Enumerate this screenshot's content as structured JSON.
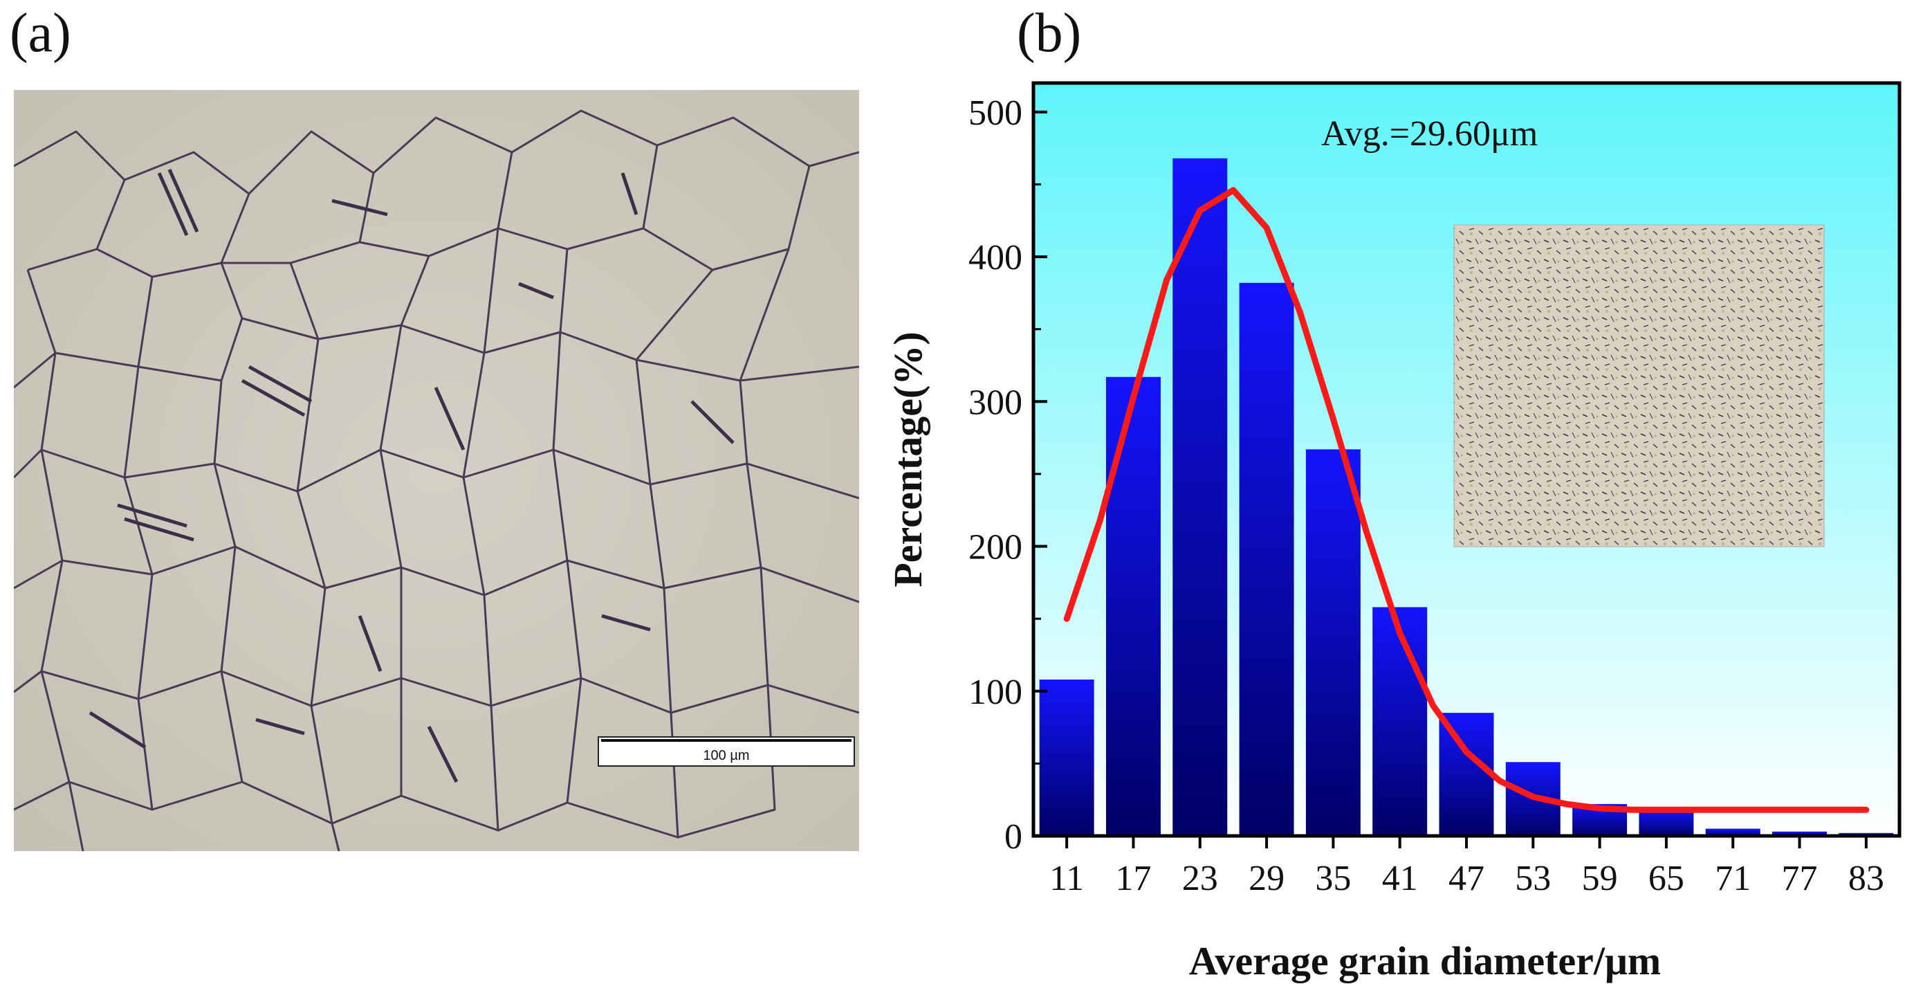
{
  "panels": {
    "a": {
      "label": "(a)",
      "scale_bar_text": "100 µm"
    },
    "b": {
      "label": "(b)"
    }
  },
  "colors": {
    "bar_top": "#1414ff",
    "bar_bottom": "#000066",
    "fit_line": "#ff1a1a",
    "bg_top": "#5ef5fb",
    "bg_bottom": "#ffffff",
    "micro_bg": "#ccc8bc",
    "grain_boundary": "#4a3a55"
  },
  "chart_data": {
    "type": "bar",
    "title": "",
    "annotation": "Avg.=29.60μm",
    "xlabel": "Average grain diameter/μm",
    "ylabel": "Percentage(%)",
    "categories": [
      "11",
      "17",
      "23",
      "29",
      "35",
      "41",
      "47",
      "53",
      "59",
      "65",
      "71",
      "77",
      "83"
    ],
    "values": [
      108,
      317,
      468,
      382,
      267,
      158,
      85,
      51,
      22,
      18,
      5,
      3,
      2
    ],
    "ylim": [
      0,
      520
    ],
    "yticks": [
      "0",
      "100",
      "200",
      "300",
      "400",
      "500"
    ],
    "fit": {
      "type": "gaussian",
      "x": [
        11,
        14,
        17,
        20,
        23,
        26,
        29,
        32,
        35,
        38,
        41,
        44,
        47,
        50,
        53,
        56,
        59,
        62,
        65,
        71,
        77,
        83
      ],
      "y": [
        150,
        218,
        303,
        384,
        432,
        446,
        420,
        362,
        288,
        210,
        140,
        90,
        58,
        38,
        27,
        22,
        19,
        18,
        18,
        18,
        18,
        18
      ]
    },
    "inset": "micrograph image"
  }
}
